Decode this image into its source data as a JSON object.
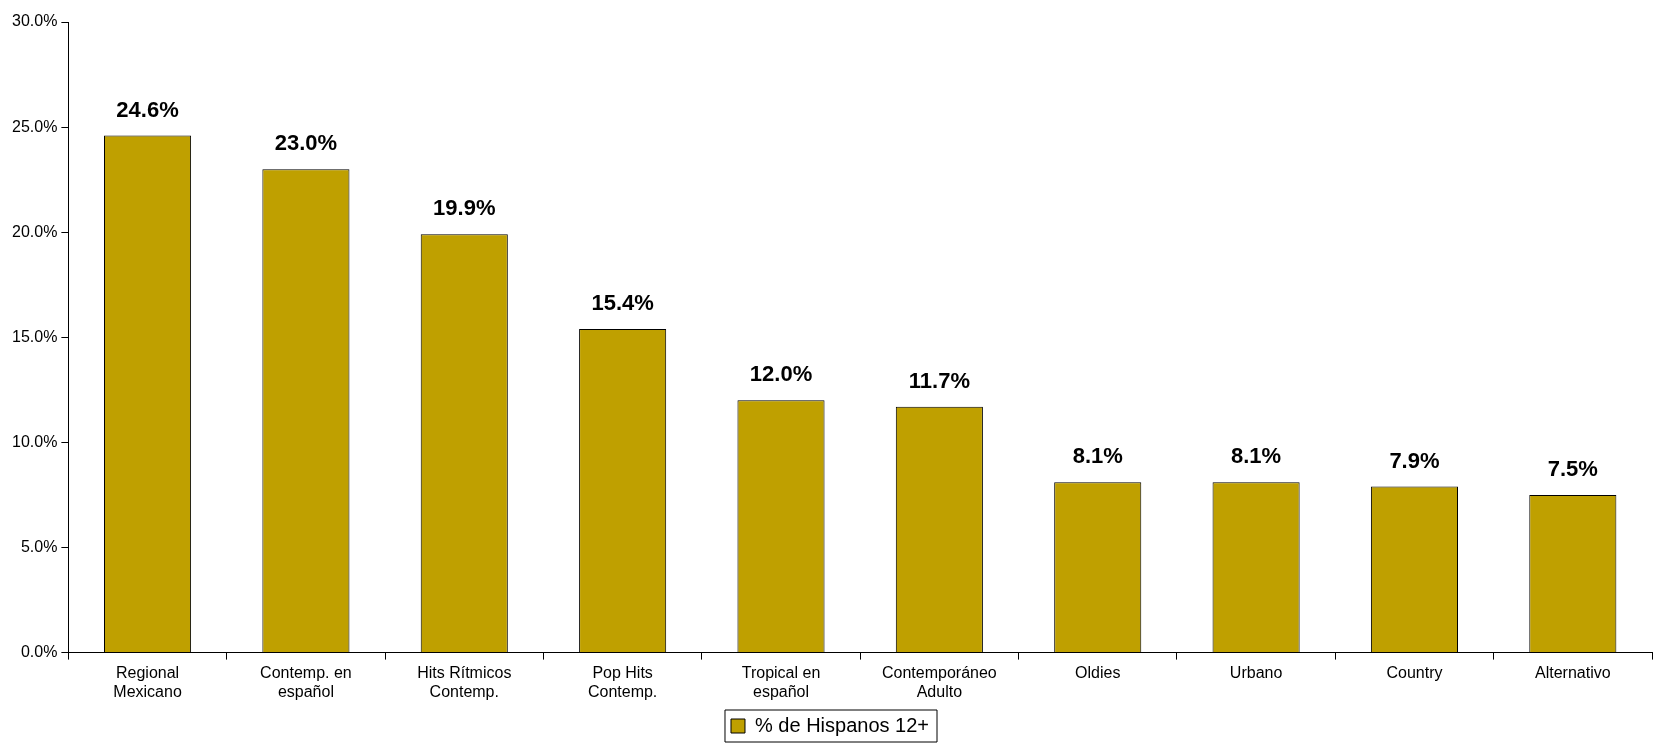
{
  "chart_data": {
    "type": "bar",
    "categories": [
      "Regional Mexicano",
      "Contemp. en español",
      "Hits Rítmicos Contemp.",
      "Pop Hits Contemp.",
      "Tropical en español",
      "Contemporáneo Adulto",
      "Oldies",
      "Urbano",
      "Country",
      "Alternativo"
    ],
    "series": [
      {
        "name": "% de Hispanos 12+",
        "color": "#bfa000",
        "values": [
          24.6,
          23.0,
          19.9,
          15.4,
          12.0,
          11.7,
          8.1,
          8.1,
          7.9,
          7.5
        ],
        "value_labels": [
          "24.6%",
          "23.0%",
          "19.9%",
          "15.4%",
          "12.0%",
          "11.7%",
          "8.1%",
          "8.1%",
          "7.9%",
          "7.5%"
        ]
      }
    ],
    "ylim": [
      0,
      30
    ],
    "yticks": [
      {
        "value": 0,
        "label": "0.0%"
      },
      {
        "value": 5,
        "label": "5.0%"
      },
      {
        "value": 10,
        "label": "10.0%"
      },
      {
        "value": 15,
        "label": "15.0%"
      },
      {
        "value": 20,
        "label": "20.0%"
      },
      {
        "value": 25,
        "label": "25.0%"
      },
      {
        "value": 30,
        "label": "30.0%"
      }
    ],
    "grid": false,
    "legend": "bottom"
  }
}
